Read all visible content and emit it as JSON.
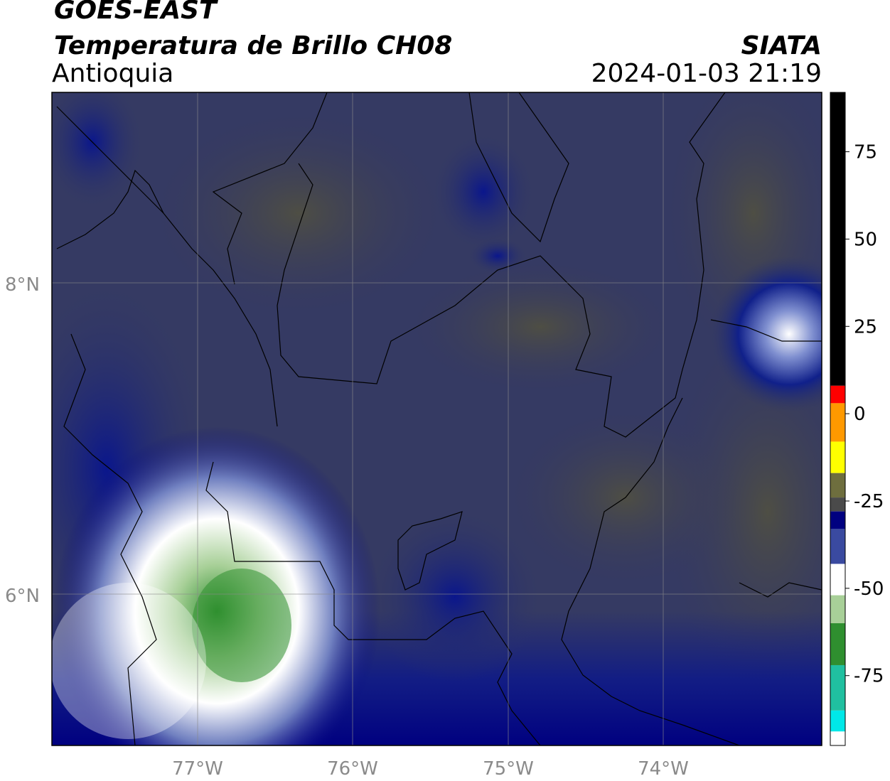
{
  "header": {
    "satellite": "GOES-EAST",
    "product": "Temperatura de Brillo CH08",
    "region": "Antioquia",
    "source": "SIATA",
    "datetime": "2024-01-03 21:19"
  },
  "map": {
    "lat_labels": [
      "8°N",
      "6°N"
    ],
    "lon_labels": [
      "77°W",
      "76°W",
      "75°W",
      "74°W"
    ]
  },
  "colorbar": {
    "tick_labels": [
      "75",
      "50",
      "25",
      "0",
      "-25",
      "-50",
      "-75"
    ],
    "tick_values": [
      75,
      50,
      25,
      0,
      -25,
      -50,
      -75
    ],
    "range": [
      -95,
      92
    ],
    "colors": {
      "black": "#000000",
      "red": "#ff0000",
      "orange": "#ff9900",
      "yellow": "#ffff00",
      "olive": "#6e6e3e",
      "gray": "#4a4a4a",
      "navy": "#000080",
      "blue": "#3a4aa0",
      "white": "#ffffff",
      "lightgreen": "#a8d098",
      "green": "#2f8f2f",
      "teal": "#20c0a0",
      "cyan": "#00e8e8"
    }
  }
}
